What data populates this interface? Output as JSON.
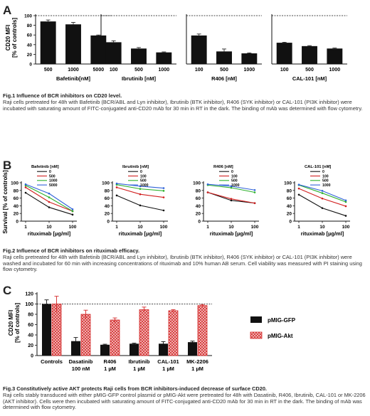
{
  "panels": {
    "a": "A",
    "b": "B",
    "c": "C"
  },
  "fig1": {
    "ylabel_line1": "CD20 MFI",
    "ylabel_line2": "[% of controls]",
    "charts": [
      {
        "type": "bar",
        "xlabel": "Bafetinib[nM]",
        "categories": [
          "500",
          "1000",
          "5000"
        ],
        "values": [
          88,
          82,
          59
        ],
        "errors": [
          3,
          4,
          1
        ]
      },
      {
        "type": "bar",
        "xlabel": "Ibrutinib [nM]",
        "categories": [
          "100",
          "500",
          "1000"
        ],
        "values": [
          45,
          32,
          24
        ],
        "errors": [
          3,
          2,
          1
        ]
      },
      {
        "type": "bar",
        "xlabel": "R406 [nM]",
        "categories": [
          "100",
          "500",
          "1000"
        ],
        "values": [
          59,
          26,
          22
        ],
        "errors": [
          3,
          5,
          1
        ]
      },
      {
        "type": "bar",
        "xlabel": "CAL-101 [nM]",
        "categories": [
          "100",
          "500",
          "1000"
        ],
        "values": [
          44,
          37,
          32
        ],
        "errors": [
          1,
          1,
          1
        ]
      }
    ],
    "ylim": [
      0,
      100
    ],
    "yticks": [
      "0",
      "20",
      "40",
      "60",
      "80",
      "100"
    ],
    "caption_title": "Fig.1 Influence of BCR inhibitors on CD20 level.",
    "caption_body": "Raji cells pretreated for 48h with Bafetinib (BCR/ABL and Lyn inhibitor), Ibrutinib (BTK inhibitor), R406 (SYK inhibitor) or CAL-101 (PI3K inhibitor) were incubated with saturating amount of FITC-conjugated anti-CD20 mAb for 30 min in RT in the dark. The binding of mAb was determined with flow cytometry."
  },
  "fig2": {
    "ylabel": "Survival [% of controls]",
    "xlabel": "rituximab [µg/ml]",
    "x": [
      1,
      10,
      100
    ],
    "xticks": [
      "1",
      "10",
      "100"
    ],
    "yticks": [
      "0",
      "20",
      "40",
      "60",
      "80",
      "100"
    ],
    "ylim": [
      0,
      100
    ],
    "series_colors": [
      "#111111",
      "#d11f1f",
      "#2db02d",
      "#2f62d8"
    ],
    "charts": [
      {
        "type": "line",
        "legend_title": "Bafetinib [nM]",
        "legend": [
          "0",
          "500",
          "1000",
          "5000"
        ],
        "series": [
          {
            "values": [
              74,
              36,
              17
            ]
          },
          {
            "values": [
              88,
              50,
              26
            ]
          },
          {
            "values": [
              93,
              62,
              26
            ]
          },
          {
            "values": [
              96,
              72,
              31
            ]
          }
        ]
      },
      {
        "type": "line",
        "legend_title": "Ibrutinib [nM]",
        "legend": [
          "0",
          "100",
          "500",
          "1000"
        ],
        "series": [
          {
            "values": [
              67,
              41,
              28
            ]
          },
          {
            "values": [
              88,
              70,
              62
            ]
          },
          {
            "values": [
              95,
              84,
              79
            ]
          },
          {
            "values": [
              98,
              91,
              86
            ]
          }
        ]
      },
      {
        "type": "line",
        "legend_title": "R406 [nM]",
        "legend": [
          "0",
          "100",
          "500",
          "1000"
        ],
        "series": [
          {
            "values": [
              75,
              54,
              47
            ]
          },
          {
            "values": [
              75,
              58,
              47
            ]
          },
          {
            "values": [
              94,
              87,
              75
            ]
          },
          {
            "values": [
              96,
              91,
              81
            ]
          }
        ]
      },
      {
        "type": "line",
        "legend_title": "CAL-101 [nM]",
        "legend": [
          "0",
          "100",
          "500",
          "1000"
        ],
        "series": [
          {
            "values": [
              69,
              34,
              14
            ]
          },
          {
            "values": [
              85,
              59,
              39
            ]
          },
          {
            "values": [
              94,
              73,
              50
            ]
          },
          {
            "values": [
              95,
              79,
              54
            ]
          }
        ]
      }
    ],
    "caption_title": "Fig.2 Influence of BCR inhibitors on rituximab efficacy.",
    "caption_body": "Raji cells pretreated for 48h with Bafetinib (BCR/ABL and Lyn inhibitor), Ibrutinib (BTK inhibitor), R406 (SYK inhibitor) or CAL-101 (PI3K inhibitor) were washed and incubated for 60 min with increasing concentrations of rituximab and 10% human AB serum. Cell viability was measured with PI staining using flow cytometry."
  },
  "fig3": {
    "ylabel_line1": "CD20 MFI",
    "ylabel_line2": "[% of controls]",
    "ylim": [
      0,
      120
    ],
    "yticks": [
      "0",
      "20",
      "40",
      "60",
      "80",
      "100",
      "120"
    ],
    "categories": [
      {
        "line1": "Controls",
        "line2": ""
      },
      {
        "line1": "Dasatinib",
        "line2": "100 nM"
      },
      {
        "line1": "R406",
        "line2": "1 µM"
      },
      {
        "line1": "Ibrutinib",
        "line2": "1 µM"
      },
      {
        "line1": "CAL-101",
        "line2": "1 µM"
      },
      {
        "line1": "MK-2206",
        "line2": "1 µM"
      }
    ],
    "series": [
      {
        "name": "pMIG-GFP",
        "color": "#111111",
        "values": [
          100,
          28,
          21,
          23,
          23,
          26
        ],
        "errors": [
          8,
          7,
          1,
          1,
          4,
          2
        ]
      },
      {
        "name": "pMIG-Akt",
        "color": "#d42a2a",
        "values": [
          100,
          80,
          69,
          89,
          87,
          97
        ],
        "errors": [
          15,
          8,
          4,
          5,
          2,
          2
        ]
      }
    ],
    "caption_title": "Fig.3 Constitutively active AKT protects Raji cells from BCR inhibitors-induced decrease of surface CD20.",
    "caption_body": "Raji cells stably transduced with either pMIG-GFP control plasmid or pMIG-Akt were pretreated for 48h with Dasatinib, R406, Ibrutinib, CAL-101 or MK-2206 (AKT inhibitor). Cells were then incubated with saturating amount of FITC-conjugated anti-CD20 mAb for 30 min in RT in the dark. The binding of mAb was determined with flow cytometry."
  }
}
